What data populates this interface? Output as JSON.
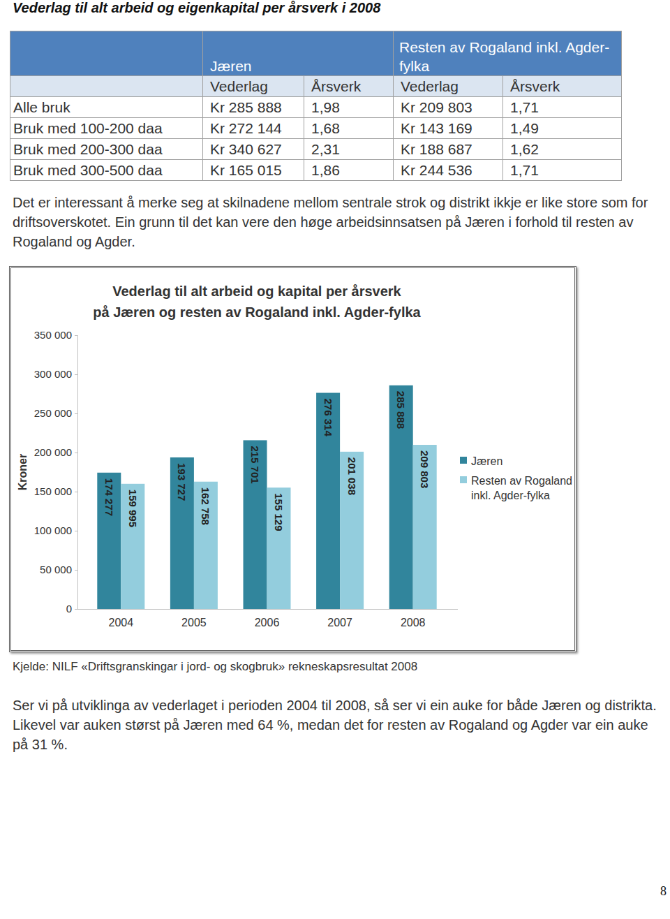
{
  "title": "Vederlag til alt arbeid og eigenkapital per årsverk i 2008",
  "table": {
    "header_groups": [
      "Jæren",
      "Resten av Rogaland inkl. Agder-fylka"
    ],
    "columns": [
      "Vederlag",
      "Årsverk",
      "Vederlag",
      "Årsverk"
    ],
    "rows": [
      [
        "Alle bruk",
        "Kr 285 888",
        "1,98",
        "Kr 209 803",
        "1,71"
      ],
      [
        "Bruk med 100-200 daa",
        "Kr 272 144",
        "1,68",
        "Kr 143 169",
        "1,49"
      ],
      [
        "Bruk med 200-300 daa",
        "Kr 340 627",
        "2,31",
        "Kr 188 687",
        "1,62"
      ],
      [
        "Bruk med 300-500 daa",
        "Kr 165 015",
        "1,86",
        "Kr 244 536",
        "1,71"
      ]
    ]
  },
  "paragraphs": [
    "Det er interessant å merke seg at skilnadene mellom sentrale strok og distrikt ikkje er like store som for driftsoverskotet. Ein grunn til det kan vere den høge arbeidsinnsatsen på Jæren i forhold til resten av Rogaland og Agder.",
    "Ser vi på utviklinga av vederlaget i perioden 2004 til 2008, så ser vi ein auke for både Jæren og distrikta. Likevel var auken størst på Jæren med 64 %, medan det for resten av Rogaland og Agder var ein auke på 31 %."
  ],
  "chart_data": {
    "type": "bar",
    "title": "Vederlag til alt arbeid og kapital per årsverk",
    "subtitle": "på Jæren og resten av Rogaland inkl. Agder-fylka",
    "y_label": "Kroner",
    "categories": [
      "2004",
      "2005",
      "2006",
      "2007",
      "2008"
    ],
    "series": [
      {
        "name": "Jæren",
        "color": "#31859c",
        "values": [
          174277,
          193727,
          215701,
          276314,
          285888
        ],
        "value_labels": [
          "174 277",
          "193 727",
          "215 701",
          "276 314",
          "285 888"
        ]
      },
      {
        "name": "Resten av Rogaland inkl. Agder-fylka",
        "color": "#93cddd",
        "values": [
          159995,
          162758,
          155129,
          201038,
          209803
        ],
        "value_labels": [
          "159 995",
          "162 758",
          "155 129",
          "201 038",
          "209 803"
        ]
      }
    ],
    "ylim": [
      0,
      350000
    ],
    "yticks": [
      0,
      {
        "value": 50000,
        "label": "50 000"
      },
      {
        "value": 100000,
        "label": "100 000"
      },
      {
        "value": 150000,
        "label": "150 000"
      },
      {
        "value": 200000,
        "label": "200 000"
      },
      {
        "value": 250000,
        "label": "250 000"
      },
      {
        "value": 300000,
        "label": "300 000"
      },
      {
        "value": 350000,
        "label": "350 000"
      }
    ],
    "grid": false,
    "legend": "right",
    "data_labels": true
  },
  "source": "Kjelde: NILF «Driftsgranskingar i jord- og skogbruk» rekneskapsresultat 2008",
  "page_number": "8"
}
